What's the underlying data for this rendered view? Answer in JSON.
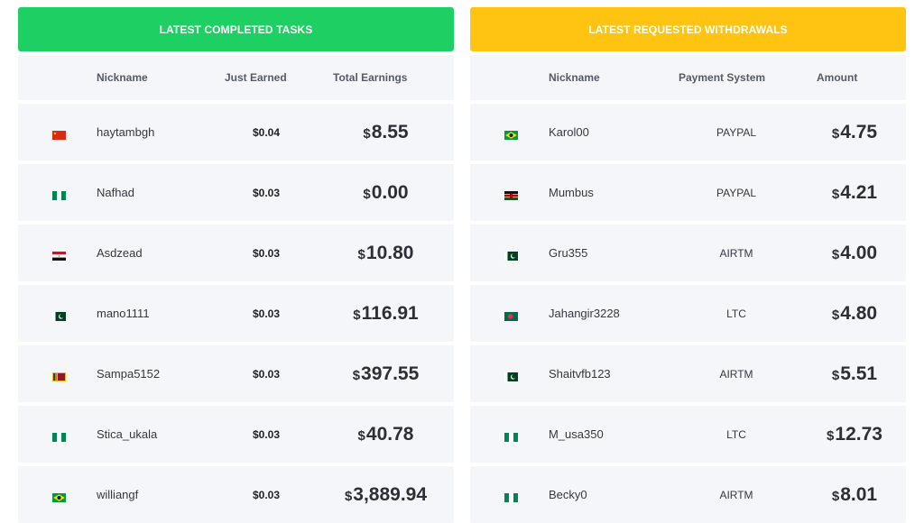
{
  "colors": {
    "completed_header": "#1ed063",
    "withdrawals_header": "#ffc412"
  },
  "completed": {
    "title": "LATEST COMPLETED TASKS",
    "columns": [
      "Nickname",
      "Just Earned",
      "Total Earnings"
    ],
    "rows": [
      {
        "flag": "china-flag",
        "nickname": "haytambgh",
        "just_earned": "$0.04",
        "currency": "$",
        "total": "8.55"
      },
      {
        "flag": "nigeria-flag",
        "nickname": "Nafhad",
        "just_earned": "$0.03",
        "currency": "$",
        "total": "0.00"
      },
      {
        "flag": "egypt-flag",
        "nickname": "Asdzead",
        "just_earned": "$0.03",
        "currency": "$",
        "total": "10.80"
      },
      {
        "flag": "pakistan-flag",
        "nickname": "mano1111",
        "just_earned": "$0.03",
        "currency": "$",
        "total": "116.91"
      },
      {
        "flag": "sri-lanka-flag",
        "nickname": "Sampa5152",
        "just_earned": "$0.03",
        "currency": "$",
        "total": "397.55"
      },
      {
        "flag": "nigeria-flag",
        "nickname": "Stica_ukala",
        "just_earned": "$0.03",
        "currency": "$",
        "total": "40.78"
      },
      {
        "flag": "brazil-flag",
        "nickname": "williangf",
        "just_earned": "$0.03",
        "currency": "$",
        "total": "3,889.94"
      }
    ]
  },
  "withdrawals": {
    "title": "LATEST REQUESTED WITHDRAWALS",
    "columns": [
      "Nickname",
      "Payment System",
      "Amount"
    ],
    "rows": [
      {
        "flag": "brazil-flag",
        "nickname": "Karol00",
        "payment": "PAYPAL",
        "currency": "$",
        "amount": "4.75"
      },
      {
        "flag": "kenya-flag",
        "nickname": "Mumbus",
        "payment": "PAYPAL",
        "currency": "$",
        "amount": "4.21"
      },
      {
        "flag": "pakistan-flag",
        "nickname": "Gru355",
        "payment": "AIRTM",
        "currency": "$",
        "amount": "4.00"
      },
      {
        "flag": "bangladesh-flag",
        "nickname": "Jahangir3228",
        "payment": "LTC",
        "currency": "$",
        "amount": "4.80"
      },
      {
        "flag": "pakistan-flag",
        "nickname": "Shaitvfb123",
        "payment": "AIRTM",
        "currency": "$",
        "amount": "5.51"
      },
      {
        "flag": "nigeria-flag",
        "nickname": "M_usa350",
        "payment": "LTC",
        "currency": "$",
        "amount": "12.73"
      },
      {
        "flag": "nigeria-flag",
        "nickname": "Becky0",
        "payment": "AIRTM",
        "currency": "$",
        "amount": "8.01"
      }
    ]
  }
}
